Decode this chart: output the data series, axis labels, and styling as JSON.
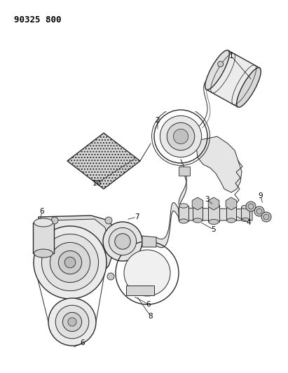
{
  "title": "90325 800",
  "background_color": "#ffffff",
  "line_color": "#2a2a2a",
  "label_color": "#000000",
  "label_fontsize": 7.5,
  "title_fontsize": 9,
  "figsize": [
    4.11,
    5.33
  ],
  "dpi": 100
}
